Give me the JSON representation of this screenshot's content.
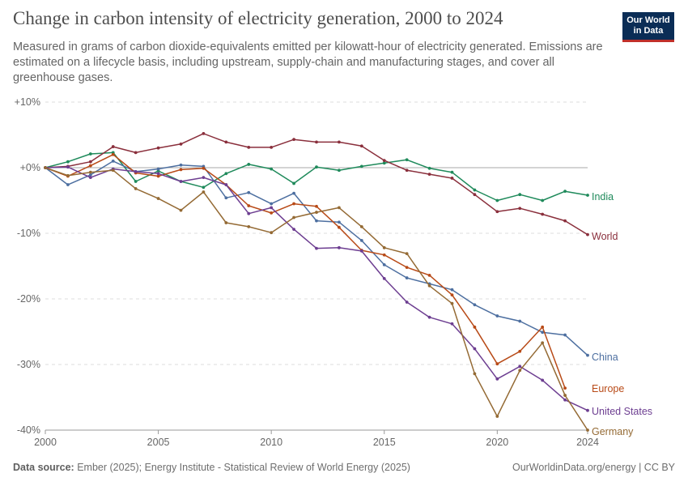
{
  "header": {
    "title": "Change in carbon intensity of electricity generation, 2000 to 2024",
    "subtitle": "Measured in grams of carbon dioxide-equivalents emitted per kilowatt-hour of electricity generated. Emissions are estimated on a lifecycle basis, including upstream, supply-chain and manufacturing stages, and cover all greenhouse gases."
  },
  "logo": {
    "line1": "Our World",
    "line2": "in Data",
    "bg_color": "#0b2d56",
    "accent_color": "#c0302a"
  },
  "footer": {
    "source_label": "Data source:",
    "source_text": "Ember (2025); Energy Institute - Statistical Review of World Energy (2025)",
    "link_text": "OurWorldinData.org/energy",
    "license": "| CC BY"
  },
  "chart_data": {
    "type": "line",
    "title": "Change in carbon intensity of electricity generation, 2000 to 2024",
    "xlabel": "",
    "ylabel": "",
    "xlim": [
      2000,
      2024
    ],
    "ylim": [
      -40,
      10
    ],
    "x_ticks": [
      2000,
      2005,
      2010,
      2015,
      2020,
      2024
    ],
    "y_ticks": [
      {
        "value": 10,
        "label": "+10%"
      },
      {
        "value": 0,
        "label": "+0%"
      },
      {
        "value": -10,
        "label": "-10%"
      },
      {
        "value": -20,
        "label": "-20%"
      },
      {
        "value": -30,
        "label": "-30%"
      },
      {
        "value": -40,
        "label": "-40%"
      }
    ],
    "grid": true,
    "legend": "inline labels at line ends (right)",
    "series": [
      {
        "name": "India",
        "color": "#1f8a5b",
        "x": [
          2000,
          2001,
          2002,
          2003,
          2004,
          2005,
          2006,
          2007,
          2008,
          2009,
          2010,
          2011,
          2012,
          2013,
          2014,
          2015,
          2016,
          2017,
          2018,
          2019,
          2020,
          2021,
          2022,
          2023,
          2024
        ],
        "values": [
          0,
          0.9,
          2.1,
          2.3,
          -2.1,
          -0.5,
          -2.1,
          -3.0,
          -0.9,
          0.5,
          -0.2,
          -2.4,
          0.1,
          -0.4,
          0.2,
          0.7,
          1.2,
          -0.1,
          -0.7,
          -3.4,
          -5.0,
          -4.1,
          -5.0,
          -3.6,
          -4.2
        ]
      },
      {
        "name": "World",
        "color": "#8a2f3c",
        "x": [
          2000,
          2001,
          2002,
          2003,
          2004,
          2005,
          2006,
          2007,
          2008,
          2009,
          2010,
          2011,
          2012,
          2013,
          2014,
          2015,
          2016,
          2017,
          2018,
          2019,
          2020,
          2021,
          2022,
          2023,
          2024
        ],
        "values": [
          0,
          0.2,
          0.9,
          3.2,
          2.3,
          3.0,
          3.6,
          5.2,
          3.9,
          3.1,
          3.1,
          4.3,
          3.9,
          3.9,
          3.3,
          1.1,
          -0.4,
          -1.0,
          -1.6,
          -4.1,
          -6.7,
          -6.2,
          -7.1,
          -8.1,
          -10.2
        ]
      },
      {
        "name": "China",
        "color": "#4d6fa0",
        "x": [
          2000,
          2001,
          2002,
          2003,
          2004,
          2005,
          2006,
          2007,
          2008,
          2009,
          2010,
          2011,
          2012,
          2013,
          2014,
          2015,
          2016,
          2017,
          2018,
          2019,
          2020,
          2021,
          2022,
          2023,
          2024
        ],
        "values": [
          0,
          -2.6,
          -1.1,
          1.0,
          -0.6,
          -0.2,
          0.4,
          0.2,
          -4.6,
          -3.8,
          -5.5,
          -3.9,
          -8.1,
          -8.3,
          -11.1,
          -14.8,
          -16.8,
          -17.7,
          -18.6,
          -20.9,
          -22.6,
          -23.4,
          -25.1,
          -25.5,
          -28.6
        ]
      },
      {
        "name": "Europe",
        "color": "#b84a17",
        "x": [
          2000,
          2001,
          2002,
          2003,
          2004,
          2005,
          2006,
          2007,
          2008,
          2009,
          2010,
          2011,
          2012,
          2013,
          2014,
          2015,
          2016,
          2017,
          2018,
          2019,
          2020,
          2021,
          2022,
          2023
        ],
        "values": [
          0,
          -1.3,
          0.3,
          2.0,
          -0.8,
          -1.3,
          -0.3,
          -0.1,
          -2.6,
          -5.8,
          -6.9,
          -5.5,
          -5.9,
          -9.1,
          -12.6,
          -13.3,
          -15.2,
          -16.4,
          -19.4,
          -24.3,
          -29.9,
          -28.0,
          -24.3,
          -33.6
        ]
      },
      {
        "name": "United States",
        "color": "#6d3e91",
        "x": [
          2000,
          2001,
          2002,
          2003,
          2004,
          2005,
          2006,
          2007,
          2008,
          2009,
          2010,
          2011,
          2012,
          2013,
          2014,
          2015,
          2016,
          2017,
          2018,
          2019,
          2020,
          2021,
          2022,
          2023,
          2024
        ],
        "values": [
          0,
          0.1,
          -1.5,
          -0.2,
          -0.6,
          -0.9,
          -2.1,
          -1.5,
          -2.6,
          -7.0,
          -6.1,
          -9.4,
          -12.3,
          -12.2,
          -12.7,
          -16.9,
          -20.5,
          -22.8,
          -23.8,
          -27.6,
          -32.2,
          -30.3,
          -32.4,
          -35.4,
          -37.0
        ]
      },
      {
        "name": "Germany",
        "color": "#946a34",
        "x": [
          2000,
          2001,
          2002,
          2003,
          2004,
          2005,
          2006,
          2007,
          2008,
          2009,
          2010,
          2011,
          2012,
          2013,
          2014,
          2015,
          2016,
          2017,
          2018,
          2019,
          2020,
          2021,
          2022,
          2023,
          2024
        ],
        "values": [
          0,
          -1.2,
          -0.7,
          -0.4,
          -3.2,
          -4.7,
          -6.5,
          -3.7,
          -8.4,
          -9.0,
          -9.9,
          -7.6,
          -6.8,
          -6.1,
          -9.0,
          -12.2,
          -13.1,
          -18.0,
          -20.7,
          -31.4,
          -37.9,
          -30.9,
          -26.7,
          -34.7,
          -40.0
        ]
      }
    ]
  }
}
